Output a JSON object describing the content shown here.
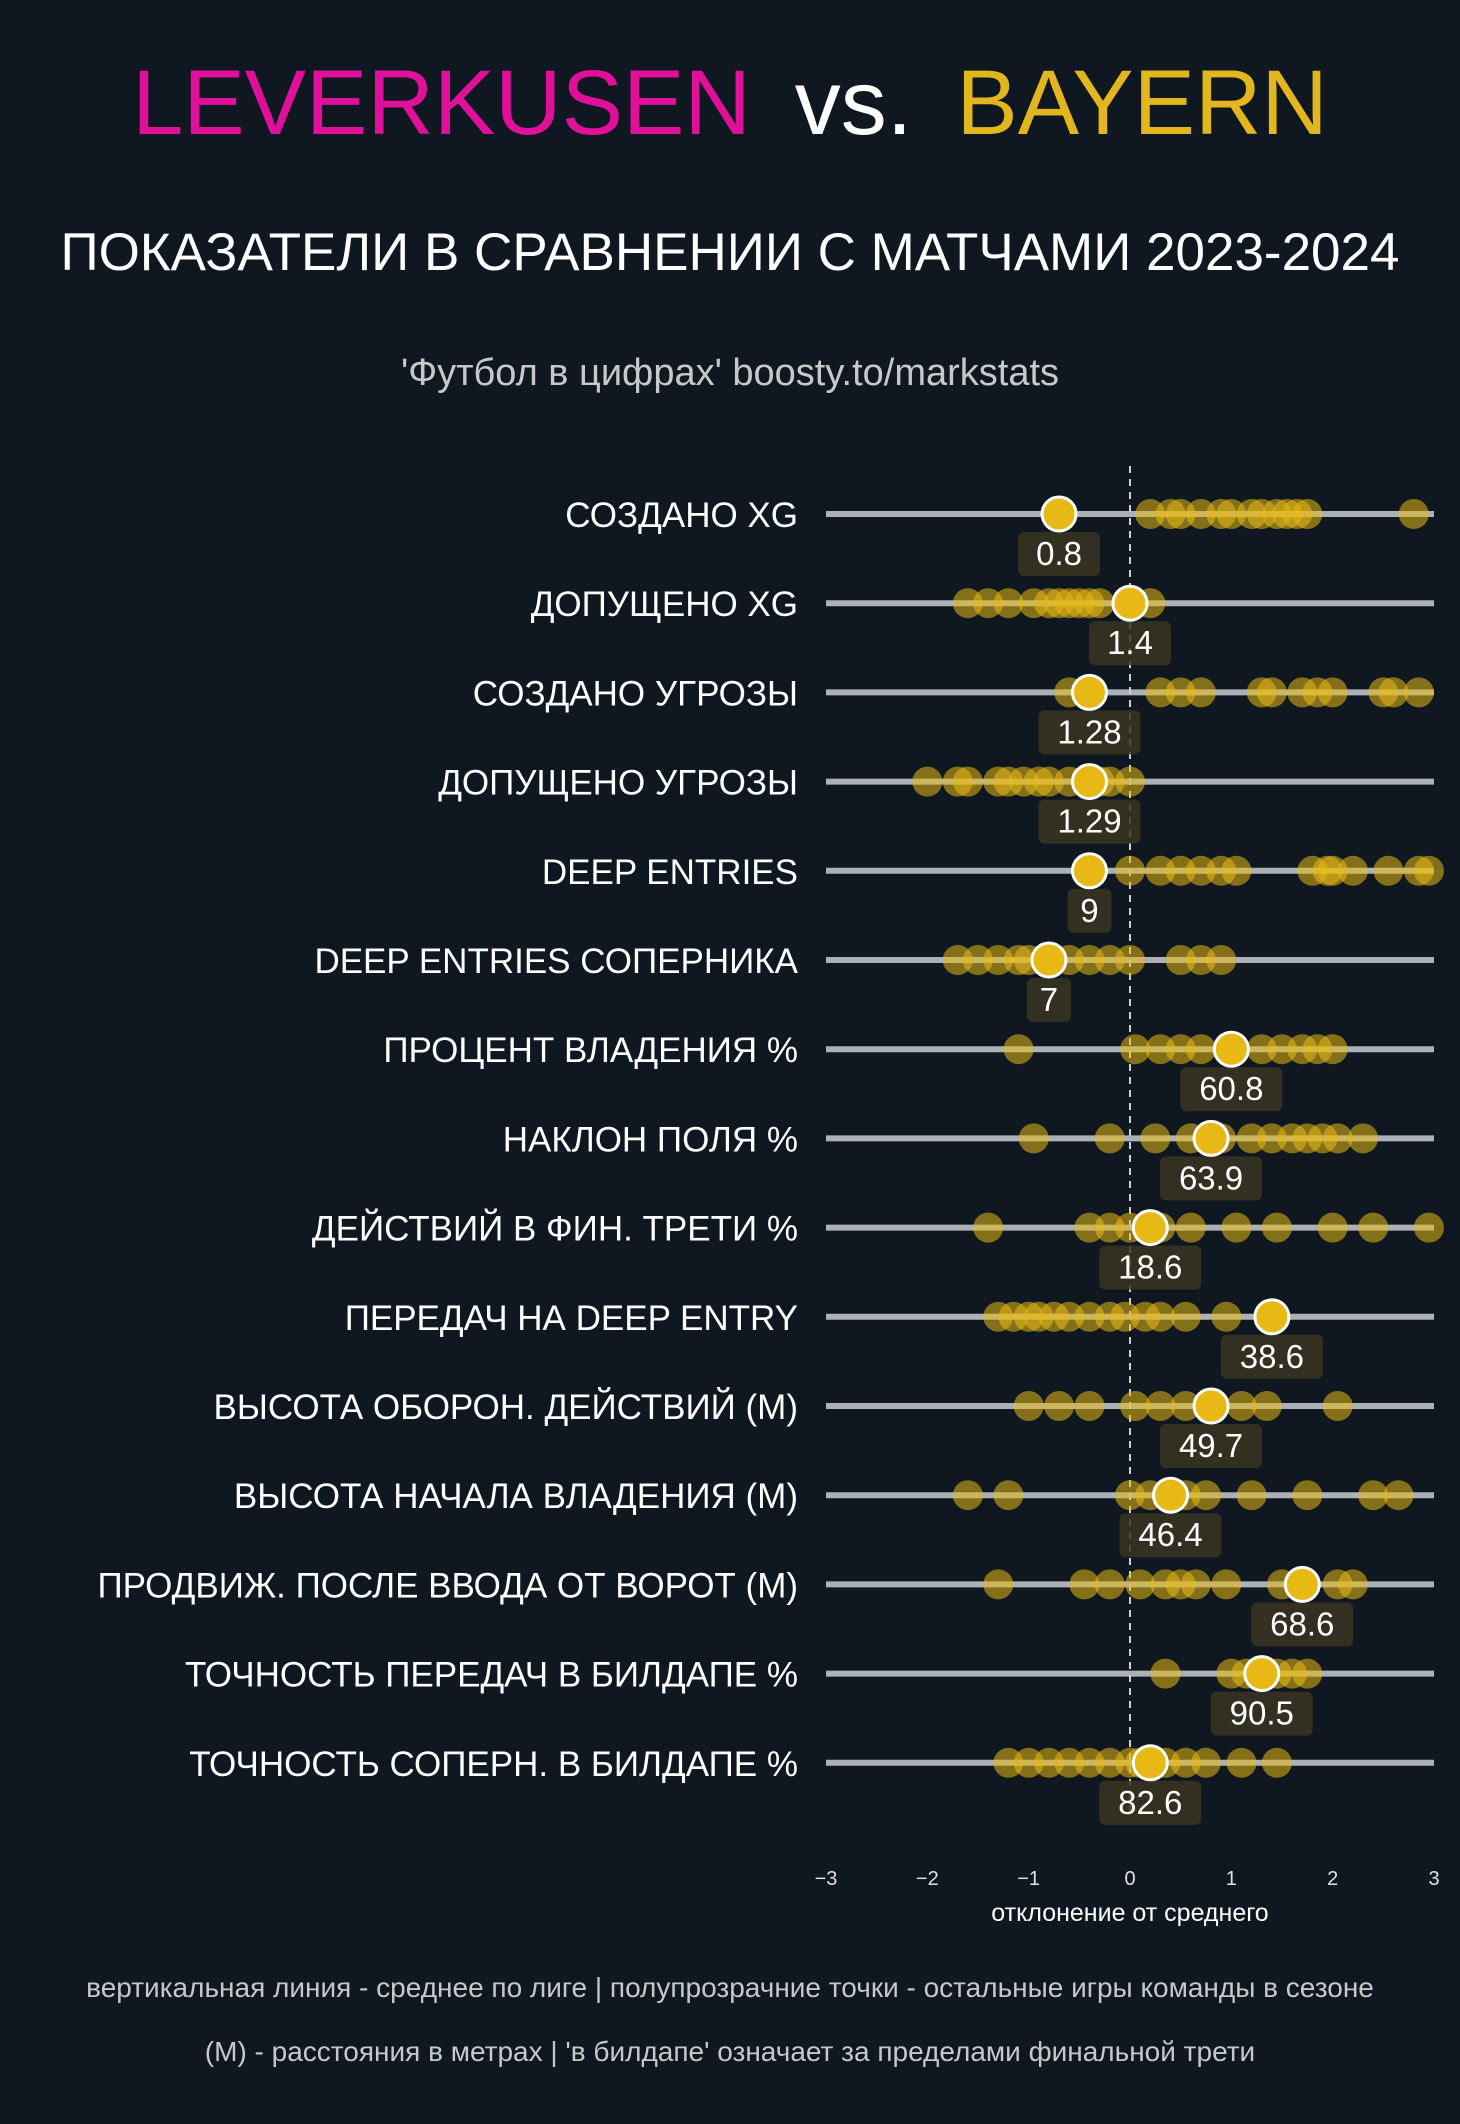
{
  "header": {
    "team_home": "LEVERKUSEN",
    "vs": "vs.",
    "team_away": "BAYERN",
    "subtitle": "ПОКАЗАТЕЛИ В СРАВНЕНИИ С МАТЧАМИ 2023-2024",
    "credit": "'Футбол в цифрах' boosty.to/markstats"
  },
  "colors": {
    "background": "#0f1720",
    "home": "#e0109a",
    "away": "#e2b61d",
    "dot": "#e8b915",
    "track": "#c8ccd2",
    "label_box": "#3a3522"
  },
  "footer": {
    "note1": "вертикальная линия - среднее по лиге  |  полупрозрачние точки - остальные игры команды в сезоне",
    "note2": "(М) - расстояния в метрах | 'в билдапе' означает за пределами финальной трети"
  },
  "chart_data": {
    "type": "scatter",
    "xlabel": "отклонение от среднего",
    "xlim": [
      -3,
      3
    ],
    "xticks": [
      "−3",
      "−2",
      "−1",
      "0",
      "1",
      "2",
      "3"
    ],
    "reference_line": 0,
    "rows": [
      {
        "label": "СОЗДАНО XG",
        "match_x": -0.7,
        "match_value": "0.8",
        "season": [
          0.2,
          0.4,
          0.5,
          0.7,
          0.9,
          1.0,
          1.2,
          1.3,
          1.45,
          1.55,
          1.65,
          1.75,
          2.8
        ]
      },
      {
        "label": "ДОПУЩЕНО XG",
        "match_x": 0.0,
        "match_value": "1.4",
        "season": [
          -1.6,
          -1.4,
          -1.2,
          -0.95,
          -0.8,
          -0.7,
          -0.6,
          -0.5,
          -0.4,
          -0.3,
          0.2
        ]
      },
      {
        "label": "СОЗДАНО УГРОЗЫ",
        "match_x": -0.4,
        "match_value": "1.28",
        "season": [
          -0.6,
          0.3,
          0.5,
          0.7,
          1.3,
          1.4,
          1.7,
          1.85,
          2.0,
          2.5,
          2.6,
          2.85
        ]
      },
      {
        "label": "ДОПУЩЕНО УГРОЗЫ",
        "match_x": -0.4,
        "match_value": "1.29",
        "season": [
          -2.0,
          -1.7,
          -1.6,
          -1.3,
          -1.2,
          -1.05,
          -0.9,
          -0.8,
          -0.6,
          -0.3,
          -0.2,
          0.0
        ]
      },
      {
        "label": "DEEP ENTRIES",
        "match_x": -0.4,
        "match_value": "9",
        "season": [
          -0.4,
          0.0,
          0.3,
          0.5,
          0.7,
          0.9,
          1.05,
          1.8,
          1.95,
          2.0,
          2.2,
          2.55,
          2.85,
          2.95
        ]
      },
      {
        "label": "DEEP ENTRIES СОПЕРНИКА",
        "match_x": -0.8,
        "match_value": "7",
        "season": [
          -1.7,
          -1.5,
          -1.3,
          -1.1,
          -1.0,
          -0.6,
          -0.4,
          -0.2,
          0.0,
          0.5,
          0.7,
          0.9
        ]
      },
      {
        "label": "ПРОЦЕНТ ВЛАДЕНИЯ %",
        "match_x": 1.0,
        "match_value": "60.8",
        "season": [
          -1.1,
          0.05,
          0.3,
          0.5,
          0.7,
          1.3,
          1.5,
          1.7,
          1.85,
          2.0
        ]
      },
      {
        "label": "НАКЛОН ПОЛЯ %",
        "match_x": 0.8,
        "match_value": "63.9",
        "season": [
          -0.95,
          -0.2,
          0.25,
          0.6,
          0.9,
          1.2,
          1.4,
          1.6,
          1.75,
          1.9,
          2.05,
          2.3
        ]
      },
      {
        "label": "ДЕЙСТВИЙ В ФИН. ТРЕТИ %",
        "match_x": 0.2,
        "match_value": "18.6",
        "season": [
          -1.4,
          -0.4,
          -0.2,
          0.0,
          0.3,
          0.6,
          1.05,
          1.45,
          2.0,
          2.4,
          2.95
        ]
      },
      {
        "label": "ПЕРЕДАЧ НА DEEP ENTRY",
        "match_x": 1.4,
        "match_value": "38.6",
        "season": [
          -1.3,
          -1.15,
          -1.0,
          -0.9,
          -0.75,
          -0.6,
          -0.4,
          -0.2,
          -0.05,
          0.15,
          0.3,
          0.55,
          0.95
        ]
      },
      {
        "label": "ВЫСОТА ОБОРОН. ДЕЙСТВИЙ (М)",
        "match_x": 0.8,
        "match_value": "49.7",
        "season": [
          -1.0,
          -0.7,
          -0.4,
          0.05,
          0.3,
          0.55,
          1.1,
          1.35,
          2.05
        ]
      },
      {
        "label": "ВЫСОТА НАЧАЛА ВЛАДЕНИЯ (М)",
        "match_x": 0.4,
        "match_value": "46.4",
        "season": [
          -1.6,
          -1.2,
          0.0,
          0.2,
          0.55,
          0.75,
          1.2,
          1.75,
          2.4,
          2.65
        ]
      },
      {
        "label": "ПРОДВИЖ. ПОСЛЕ ВВОДА ОТ ВОРОТ (М)",
        "match_x": 1.7,
        "match_value": "68.6",
        "season": [
          -1.3,
          -0.45,
          -0.2,
          0.1,
          0.35,
          0.5,
          0.65,
          0.95,
          1.5,
          2.05,
          2.2
        ]
      },
      {
        "label": "ТОЧНОСТЬ ПЕРЕДАЧ В БИЛДАПЕ %",
        "match_x": 1.3,
        "match_value": "90.5",
        "season": [
          0.35,
          1.0,
          1.15,
          1.3,
          1.45,
          1.6,
          1.75
        ]
      },
      {
        "label": "ТОЧНОСТЬ СОПЕРН. В БИЛДАПЕ %",
        "match_x": 0.2,
        "match_value": "82.6",
        "season": [
          -1.2,
          -1.0,
          -0.8,
          -0.6,
          -0.4,
          -0.2,
          0.0,
          0.1,
          0.35,
          0.55,
          0.75,
          1.1,
          1.45
        ]
      }
    ]
  }
}
